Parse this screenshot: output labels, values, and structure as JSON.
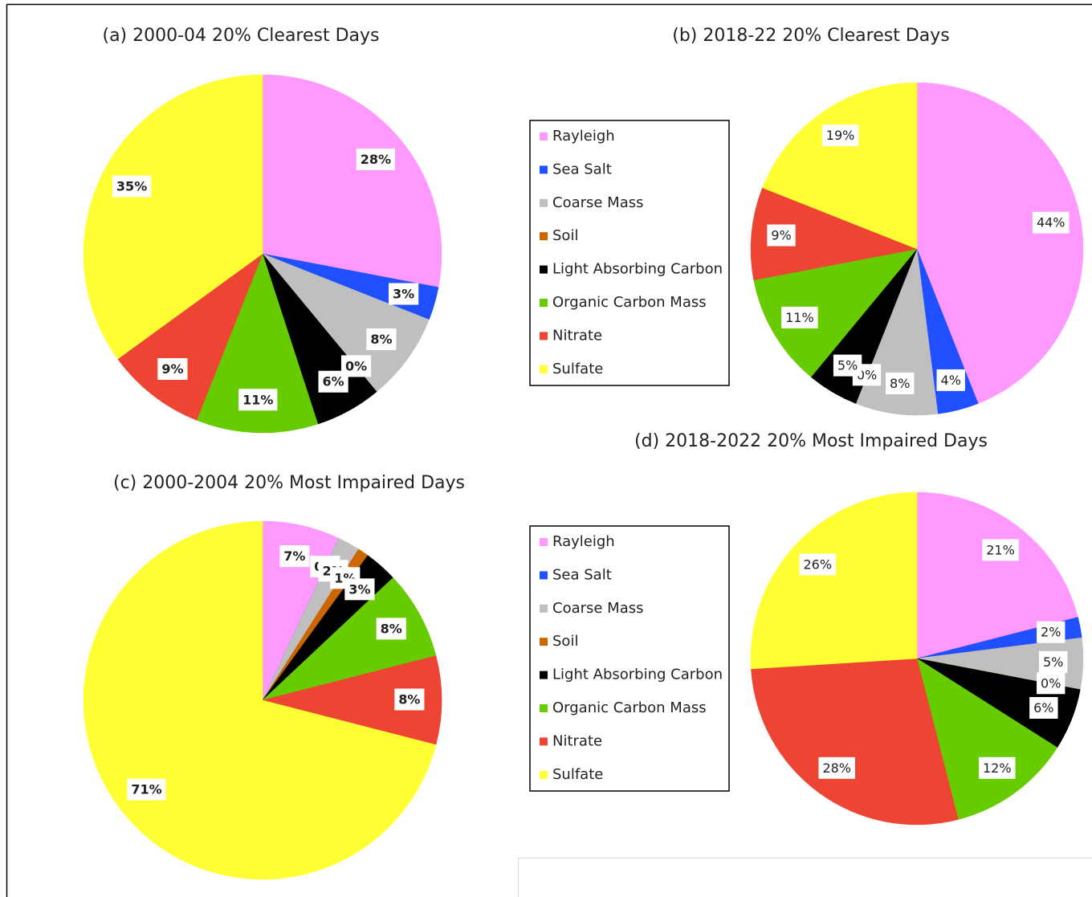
{
  "chart_data": [
    {
      "type": "pie",
      "title": "(a) 2000-04 20% Clearest Days",
      "categories": [
        "Rayleigh",
        "Sea Salt",
        "Coarse Mass",
        "Soil",
        "Light Absorbing Carbon",
        "Organic Carbon Mass",
        "Nitrate",
        "Sulfate"
      ],
      "values": [
        28,
        3,
        8,
        0,
        6,
        11,
        9,
        35
      ],
      "value_labels": [
        "28%",
        "3%",
        "8%",
        "0%",
        "6%",
        "11%",
        "9%",
        "35%"
      ],
      "colors": [
        "#ff99ff",
        "#1f4fff",
        "#bfbfbf",
        "#cc6600",
        "#000000",
        "#66cc00",
        "#ee4433",
        "#ffff33"
      ]
    },
    {
      "type": "pie",
      "title": "(b) 2018-22 20% Clearest Days",
      "categories": [
        "Rayleigh",
        "Sea Salt",
        "Coarse Mass",
        "Soil",
        "Light Absorbing Carbon",
        "Organic Carbon Mass",
        "Nitrate",
        "Sulfate"
      ],
      "values": [
        44,
        4,
        8,
        0,
        5,
        11,
        9,
        19
      ],
      "value_labels": [
        "44%",
        "4%",
        "8%",
        "0%",
        "5%",
        "11%",
        "9%",
        "19%"
      ],
      "colors": [
        "#ff99ff",
        "#1f4fff",
        "#bfbfbf",
        "#cc6600",
        "#000000",
        "#66cc00",
        "#ee4433",
        "#ffff33"
      ],
      "legend": "left"
    },
    {
      "type": "pie",
      "title": "(c) 2000-2004 20% Most Impaired Days",
      "categories": [
        "Rayleigh",
        "Sea Salt",
        "Coarse Mass",
        "Soil",
        "Light Absorbing Carbon",
        "Organic Carbon Mass",
        "Nitrate",
        "Sulfate"
      ],
      "values": [
        7,
        0,
        2,
        1,
        3,
        8,
        8,
        71
      ],
      "value_labels": [
        "7%",
        "0%",
        "2%",
        "1%",
        "3%",
        "8%",
        "8%",
        "71%"
      ],
      "colors": [
        "#ff99ff",
        "#1f4fff",
        "#bfbfbf",
        "#cc6600",
        "#000000",
        "#66cc00",
        "#ee4433",
        "#ffff33"
      ]
    },
    {
      "type": "pie",
      "title": "(d) 2018-2022 20% Most Impaired Days",
      "categories": [
        "Rayleigh",
        "Sea Salt",
        "Coarse Mass",
        "Soil",
        "Light Absorbing Carbon",
        "Organic Carbon Mass",
        "Nitrate",
        "Sulfate"
      ],
      "values": [
        21,
        2,
        5,
        0,
        6,
        12,
        28,
        26
      ],
      "value_labels": [
        "21%",
        "2%",
        "5%",
        "0%",
        "6%",
        "12%",
        "28%",
        "26%"
      ],
      "colors": [
        "#ff99ff",
        "#1f4fff",
        "#bfbfbf",
        "#cc6600",
        "#000000",
        "#66cc00",
        "#ee4433",
        "#ffff33"
      ],
      "legend": "left"
    }
  ]
}
